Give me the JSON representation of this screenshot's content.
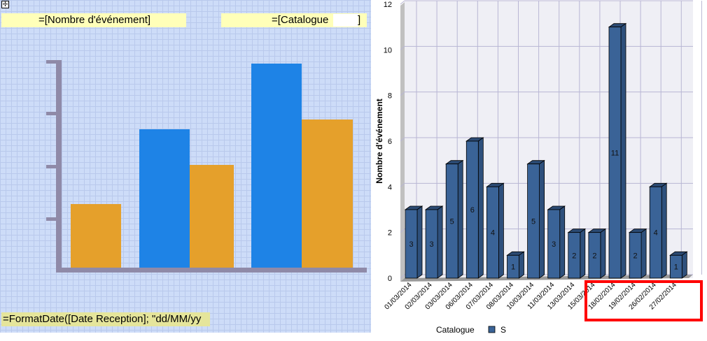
{
  "designer": {
    "move_handle_icon": "move-cross-icon",
    "measure_field": "=[Nombre d'événement]",
    "series_field": "=[Catalogue",
    "series_field_end": "]",
    "category_field": "=FormatDate([Date Reception]; \"dd/MM/yy",
    "colors": {
      "blue": "#1e83e6",
      "orange": "#e5a02b"
    }
  },
  "chart_data": {
    "type": "bar",
    "categories": [
      "01/03/2014",
      "02/03/2014",
      "03/03/2014",
      "06/03/2014",
      "07/03/2014",
      "08/03/2014",
      "10/03/2014",
      "11/03/2014",
      "13/03/2014",
      "15/03/2014",
      "18/02/2014",
      "19/02/2014",
      "26/02/2014",
      "27/02/2014"
    ],
    "series": [
      {
        "name": "S",
        "values": [
          3,
          3,
          5,
          6,
          4,
          1,
          5,
          3,
          2,
          2,
          11,
          2,
          4,
          1
        ]
      }
    ],
    "ylabel": "Nombre d'événement",
    "ylim": [
      0,
      12
    ],
    "yticks": [
      0,
      2,
      4,
      6,
      8,
      10,
      12
    ],
    "grid": true,
    "legend_title": "Catalogue",
    "legend_position": "bottom",
    "bar_color": "#3a6397",
    "highlight_color": "#ff0000"
  }
}
